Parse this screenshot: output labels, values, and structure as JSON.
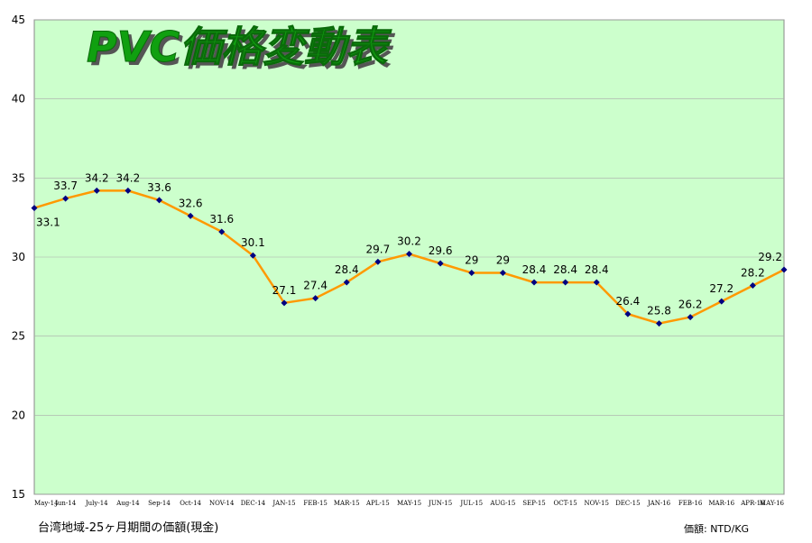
{
  "chart_data": {
    "type": "line",
    "title": "PVC価格変動表",
    "categories": [
      "May-14",
      "Jun-14",
      "July-14",
      "Aug-14",
      "Sep-14",
      "Oct-14",
      "NOV-14",
      "DEC-14",
      "JAN-15",
      "FEB-15",
      "MAR-15",
      "APL-15",
      "MAY-15",
      "JUN-15",
      "JUL-15",
      "AUG-15",
      "SEP-15",
      "OCT-15",
      "NOV-15",
      "DEC-15",
      "JAN-16",
      "FEB-16",
      "MAR-16",
      "APR-16",
      "MAY-16"
    ],
    "values": [
      33.1,
      33.7,
      34.2,
      34.2,
      33.6,
      32.6,
      31.6,
      30.1,
      27.1,
      27.4,
      28.4,
      29.7,
      30.2,
      29.6,
      29,
      29,
      28.4,
      28.4,
      28.4,
      26.4,
      25.8,
      26.2,
      27.2,
      28.2,
      29.2
    ],
    "value_labels": [
      "33.1",
      "33.7",
      "34.2",
      "34.2",
      "33.6",
      "32.6",
      "31.6",
      "30.1",
      "27.1",
      "27.4",
      "28.4",
      "29.7",
      "30.2",
      "29.6",
      "29",
      "29",
      "28.4",
      "28.4",
      "28.4",
      "26.4",
      "25.8",
      "26.2",
      "27.2",
      "28.2",
      "29.2"
    ],
    "ylim": [
      15,
      45
    ],
    "yticks": [
      "15",
      "20",
      "25",
      "30",
      "35",
      "40",
      "45"
    ],
    "grid": true,
    "colors": {
      "plot_bg": "#ccffcc",
      "line": "#ff9900",
      "marker": "#000080",
      "grid": "#aaaaaa"
    }
  },
  "footnotes": {
    "left": "台湾地域-25ヶ月期間の価額(現金)",
    "right": "価額: NTD/KG"
  }
}
